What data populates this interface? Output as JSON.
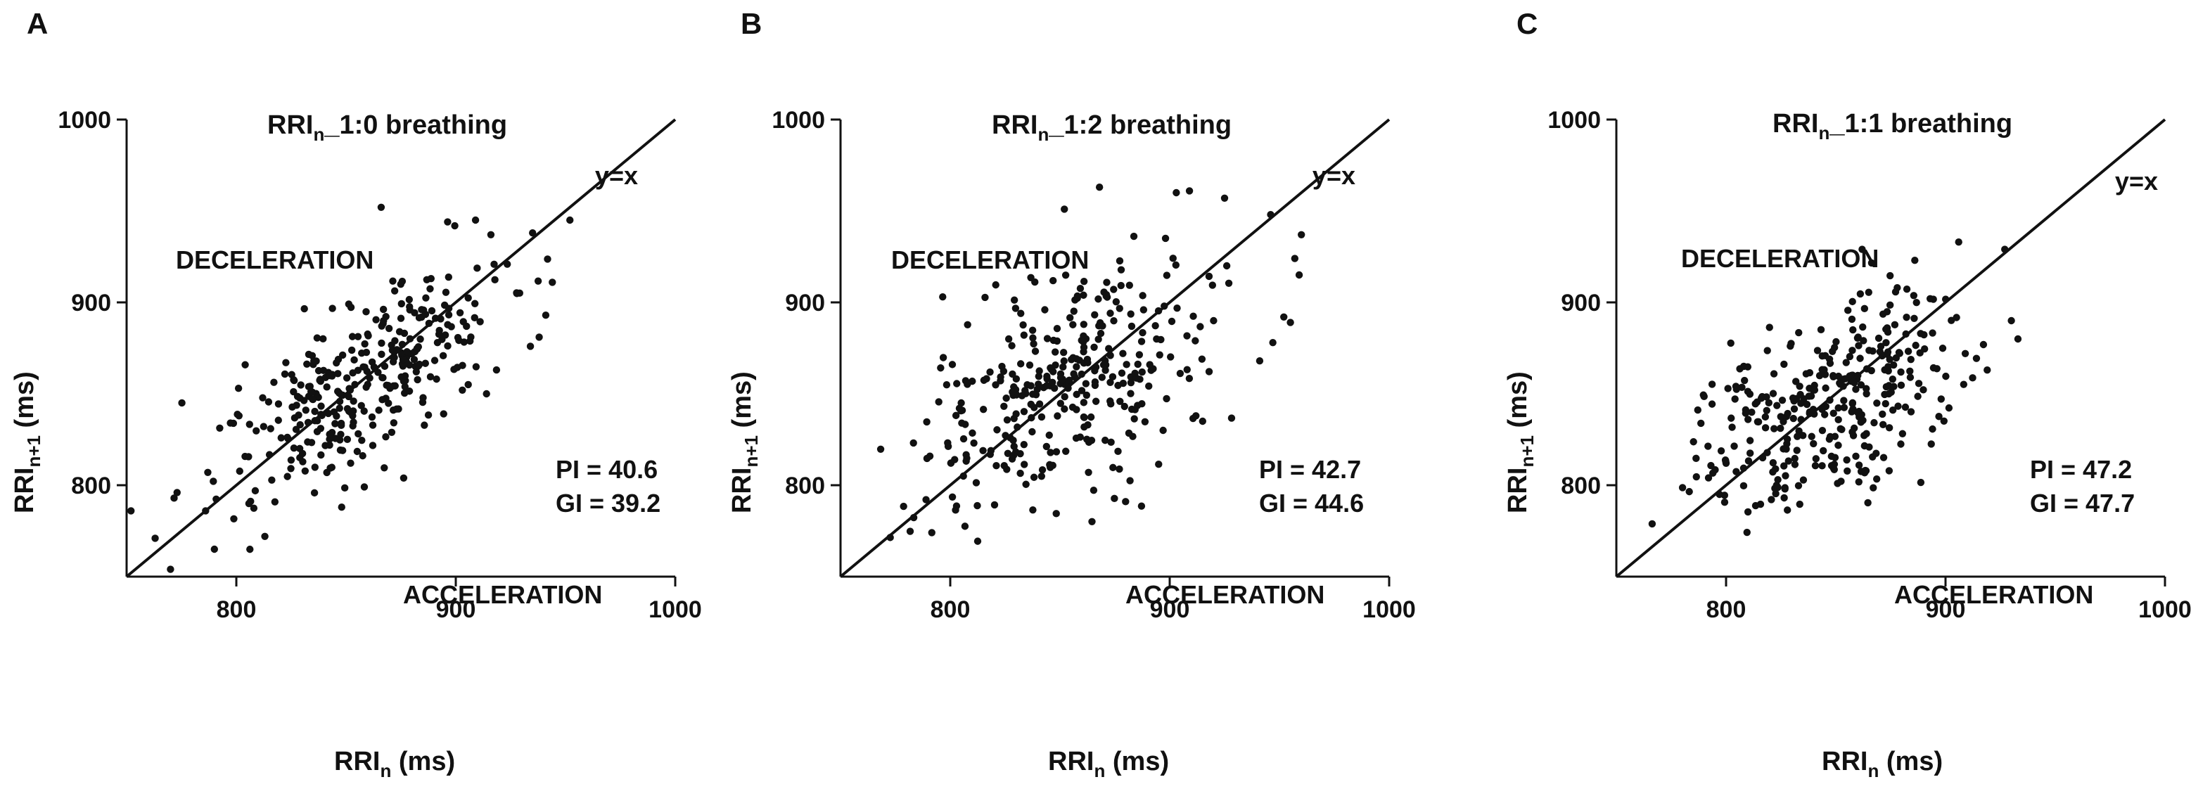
{
  "figure": {
    "panel_count": 3
  },
  "chart_data": [
    {
      "type": "scatter",
      "panel_label": "A",
      "title_main": "RRI",
      "title_sub": "n",
      "title_rest": "_1:0 breathing",
      "xlabel_main": "RRI",
      "xlabel_sub": "n",
      "xlabel_rest": " (ms)",
      "ylabel_main": "RRI",
      "ylabel_sub": "n+1",
      "ylabel_rest": " (ms)",
      "xlim": [
        750,
        1000
      ],
      "ylim": [
        750,
        1000
      ],
      "xticks": [
        800,
        900,
        1000
      ],
      "yticks": [
        800,
        900,
        1000
      ],
      "xtick_labels": [
        "800",
        "900",
        "1000"
      ],
      "ytick_labels": [
        "800",
        "900",
        "1000"
      ],
      "reference_line": {
        "label": "y=x"
      },
      "region_labels": {
        "upper": "DECELERATION",
        "lower": "ACCELERATION"
      },
      "stats": {
        "pi": "PI = 40.6",
        "gi": "GI = 39.2"
      },
      "cluster": {
        "cx": 858,
        "cy": 858,
        "s_major": 38,
        "s_minor": 17,
        "n": 330,
        "seed": 11
      },
      "points": [
        [
          752,
          786
        ],
        [
          763,
          771
        ],
        [
          770,
          754
        ],
        [
          773,
          796
        ],
        [
          786,
          786
        ],
        [
          787,
          807
        ],
        [
          790,
          765
        ],
        [
          801,
          853
        ],
        [
          813,
          772
        ],
        [
          848,
          788
        ],
        [
          866,
          952
        ],
        [
          909,
          945
        ],
        [
          916,
          937
        ],
        [
          935,
          938
        ],
        [
          952,
          945
        ],
        [
          944,
          911
        ],
        [
          941,
          893
        ],
        [
          934,
          876
        ],
        [
          938,
          881
        ],
        [
          914,
          850
        ],
        [
          903,
          852
        ],
        [
          870,
          853
        ]
      ]
    },
    {
      "type": "scatter",
      "panel_label": "B",
      "title_main": "RRI",
      "title_sub": "n",
      "title_rest": "_1:2 breathing",
      "xlabel_main": "RRI",
      "xlabel_sub": "n",
      "xlabel_rest": " (ms)",
      "ylabel_main": "RRI",
      "ylabel_sub": "n+1",
      "ylabel_rest": " (ms)",
      "xlim": [
        750,
        1000
      ],
      "ylim": [
        750,
        1000
      ],
      "xticks": [
        800,
        900,
        1000
      ],
      "yticks": [
        800,
        900,
        1000
      ],
      "xtick_labels": [
        "800",
        "900",
        "1000"
      ],
      "ytick_labels": [
        "800",
        "900",
        "1000"
      ],
      "reference_line": {
        "label": "y=x"
      },
      "region_labels": {
        "upper": "DECELERATION",
        "lower": "ACCELERATION"
      },
      "stats": {
        "pi": "PI = 42.7",
        "gi": "GI = 44.6"
      },
      "cluster": {
        "cx": 850,
        "cy": 852,
        "s_major": 38,
        "s_minor": 24,
        "n": 330,
        "seed": 23
      },
      "points": [
        [
          802,
          814
        ],
        [
          805,
          845
        ],
        [
          852,
          951
        ],
        [
          868,
          963
        ],
        [
          903,
          960
        ],
        [
          909,
          961
        ],
        [
          925,
          957
        ],
        [
          946,
          948
        ],
        [
          960,
          937
        ],
        [
          957,
          924
        ],
        [
          959,
          915
        ],
        [
          952,
          892
        ],
        [
          947,
          878
        ],
        [
          955,
          889
        ],
        [
          941,
          868
        ],
        [
          926,
          920
        ],
        [
          920,
          890
        ],
        [
          915,
          835
        ],
        [
          897,
          830
        ],
        [
          863,
          807
        ],
        [
          806,
          805
        ]
      ]
    },
    {
      "type": "scatter",
      "panel_label": "C",
      "title_main": "RRI",
      "title_sub": "n",
      "title_rest": "_1:1 breathing",
      "xlabel_main": "RRI",
      "xlabel_sub": "n",
      "xlabel_rest": " (ms)",
      "ylabel_main": "RRI",
      "ylabel_sub": "n+1",
      "ylabel_rest": " (ms)",
      "xlim": [
        750,
        1000
      ],
      "ylim": [
        750,
        1000
      ],
      "xticks": [
        800,
        900,
        1000
      ],
      "yticks": [
        800,
        900,
        1000
      ],
      "xtick_labels": [
        "800",
        "900",
        "1000"
      ],
      "ytick_labels": [
        "800",
        "900",
        "1000"
      ],
      "reference_line": {
        "label": "y=x"
      },
      "region_labels": {
        "upper": "DECELERATION",
        "lower": "ACCELERATION"
      },
      "stats": {
        "pi": "PI = 47.2",
        "gi": "GI = 47.7"
      },
      "cluster": {
        "cx": 845,
        "cy": 845,
        "s_major": 33,
        "s_minor": 22,
        "n": 330,
        "seed": 37
      },
      "points": [
        [
          792,
          804
        ],
        [
          797,
          795
        ],
        [
          862,
          929
        ],
        [
          906,
          933
        ],
        [
          927,
          929
        ],
        [
          930,
          890
        ],
        [
          933,
          880
        ],
        [
          919,
          863
        ],
        [
          909,
          872
        ],
        [
          878,
          908
        ],
        [
          893,
          902
        ],
        [
          886,
          923
        ],
        [
          810,
          836
        ],
        [
          800,
          812
        ],
        [
          823,
          800
        ]
      ]
    }
  ]
}
